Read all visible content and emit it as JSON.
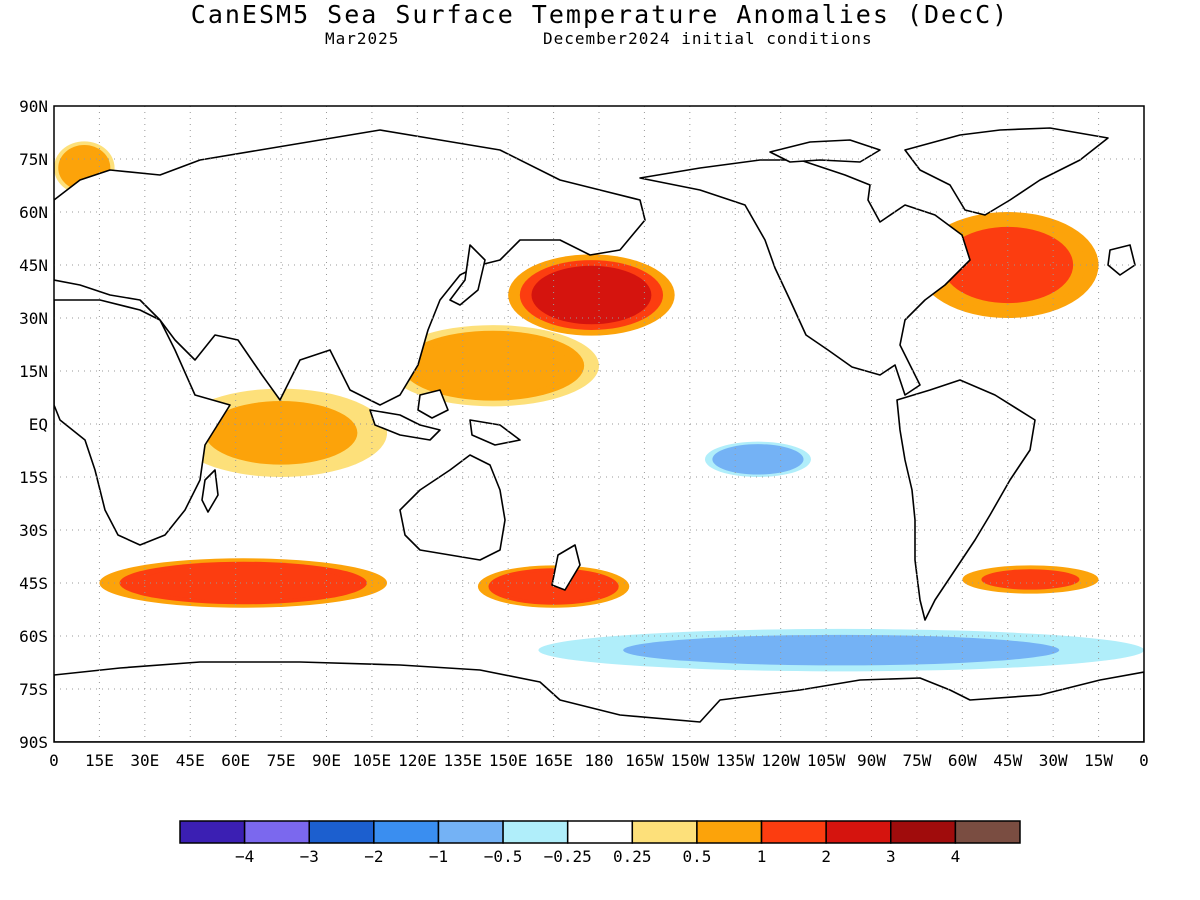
{
  "header": {
    "title": "CanESM5 Sea Surface Temperature Anomalies (DecC)",
    "valid_month": "Mar2025",
    "init_conditions": "December2024 initial conditions"
  },
  "map": {
    "projection": "cylindrical equidistant",
    "lat_labels": [
      "90N",
      "75N",
      "60N",
      "45N",
      "30N",
      "15N",
      "EQ",
      "15S",
      "30S",
      "45S",
      "60S",
      "75S",
      "90S"
    ],
    "lon_labels": [
      "0",
      "15E",
      "30E",
      "45E",
      "60E",
      "75E",
      "90E",
      "105E",
      "120E",
      "135E",
      "150E",
      "165E",
      "180",
      "165W",
      "150W",
      "135W",
      "120W",
      "105W",
      "90W",
      "75W",
      "60W",
      "45W",
      "30W",
      "15W",
      "0"
    ],
    "grid": "dotted",
    "field": "sea surface temperature anomaly (degC)"
  },
  "legend": {
    "labels": [
      "-4",
      "-3",
      "-2",
      "-1",
      "-0.5",
      "-0.25",
      "0.25",
      "0.5",
      "1",
      "2",
      "3",
      "4"
    ],
    "colors": [
      "#3b1fb3",
      "#7b68ee",
      "#1c5fcf",
      "#3a8ef0",
      "#74b2f5",
      "#b0eefa",
      "#ffffff",
      "#fde07a",
      "#fca30a",
      "#fc3d10",
      "#d5140e",
      "#a00c0c",
      "#7a4d41"
    ]
  },
  "chart_data": {
    "type": "heatmap",
    "title": "CanESM5 Sea Surface Temperature Anomalies (DecC)",
    "units": "degC",
    "levels": [
      -4,
      -3,
      -2,
      -1,
      -0.5,
      -0.25,
      0.25,
      0.5,
      1,
      2,
      3,
      4
    ],
    "xrange": [
      0,
      360
    ],
    "yrange": [
      -90,
      90
    ],
    "regions": [
      {
        "lon": [
          150,
          205
        ],
        "lat": [
          25,
          48
        ],
        "anom": 2.2
      },
      {
        "lon": [
          110,
          180
        ],
        "lat": [
          5,
          28
        ],
        "anom": 0.8
      },
      {
        "lon": [
          285,
          345
        ],
        "lat": [
          30,
          60
        ],
        "anom": 1.3
      },
      {
        "lon": [
          15,
          110
        ],
        "lat": [
          -52,
          -38
        ],
        "anom": 1.4
      },
      {
        "lon": [
          140,
          190
        ],
        "lat": [
          -52,
          -40
        ],
        "anom": 1.4
      },
      {
        "lon": [
          215,
          250
        ],
        "lat": [
          -15,
          -5
        ],
        "anom": -0.7
      },
      {
        "lon": [
          160,
          360
        ],
        "lat": [
          -70,
          -58
        ],
        "anom": -0.6
      },
      {
        "lon": [
          300,
          345
        ],
        "lat": [
          -48,
          -40
        ],
        "anom": 1.2
      },
      {
        "lon": [
          0,
          20
        ],
        "lat": [
          65,
          80
        ],
        "anom": 0.8
      },
      {
        "lon": [
          40,
          110
        ],
        "lat": [
          -15,
          10
        ],
        "anom": 0.5
      }
    ]
  }
}
